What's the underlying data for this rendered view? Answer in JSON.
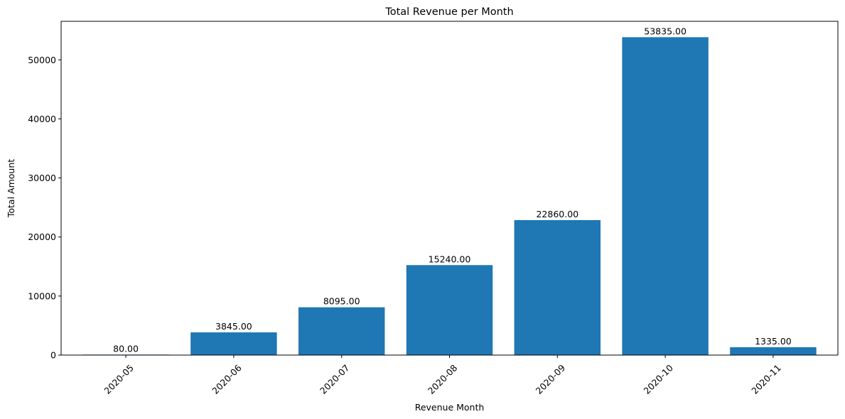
{
  "chart_data": {
    "type": "bar",
    "title": "Total Revenue per Month",
    "xlabel": "Revenue Month",
    "ylabel": "Total Amount",
    "categories": [
      "2020-05",
      "2020-06",
      "2020-07",
      "2020-08",
      "2020-09",
      "2020-10",
      "2020-11"
    ],
    "values": [
      80,
      3845,
      8095,
      15240,
      22860,
      53835,
      1335
    ],
    "value_labels": [
      "80.00",
      "3845.00",
      "8095.00",
      "15240.00",
      "22860.00",
      "53835.00",
      "1335.00"
    ],
    "ylim": [
      0,
      56526.75
    ],
    "yticks": [
      0,
      10000,
      20000,
      30000,
      40000,
      50000
    ],
    "ytick_labels": [
      "0",
      "10000",
      "20000",
      "30000",
      "40000",
      "50000"
    ],
    "bar_color": "#1f77b4",
    "xtick_rotation_deg": 45,
    "grid": false,
    "legend": false
  }
}
